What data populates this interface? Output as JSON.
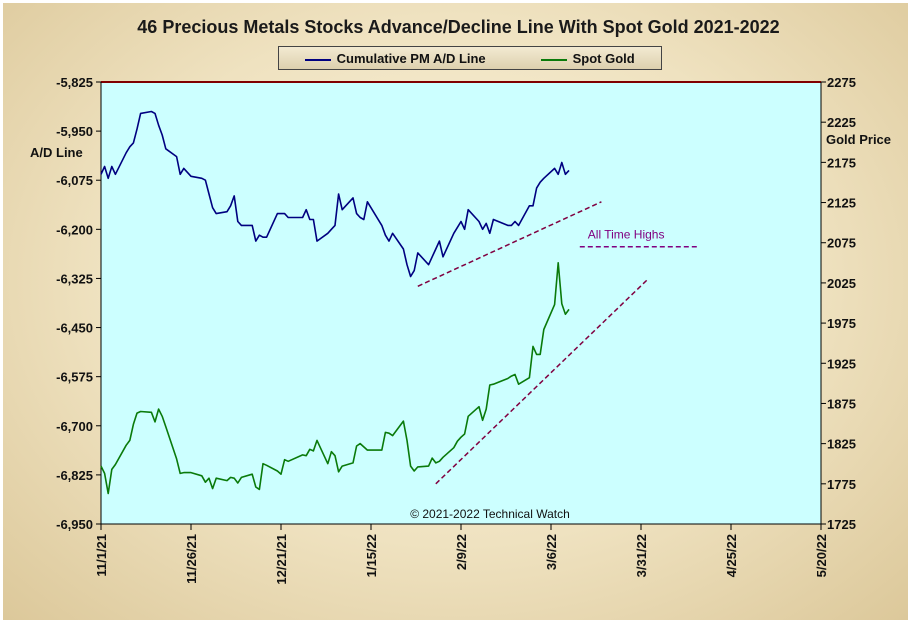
{
  "title": "46 Precious Metals Stocks Advance/Decline Line With Spot Gold 2021-2022",
  "colors": {
    "plot_bg": "#ccffff",
    "ad_line": "#000080",
    "gold_line": "#0a7a0a",
    "trend_line": "#800040",
    "ath_line": "#800080",
    "top_border": "#800000"
  },
  "legend": [
    {
      "label": "Cumulative PM A/D Line",
      "color": "#000080"
    },
    {
      "label": "Spot Gold",
      "color": "#0a7a0a"
    }
  ],
  "chart_data": {
    "type": "line",
    "title": "46 Precious Metals Stocks Advance/Decline Line With Spot Gold 2021-2022",
    "y_left_label": "A/D Line",
    "y_right_label": "Gold Price",
    "y_left_range": [
      -6950,
      -5825
    ],
    "y_right_range": [
      1725,
      2275
    ],
    "y_left_ticks": [
      "-5,825",
      "-5,950",
      "-6,075",
      "-6,200",
      "-6,325",
      "-6,450",
      "-6,575",
      "-6,700",
      "-6,825",
      "-6,950"
    ],
    "y_right_ticks": [
      "2275",
      "2225",
      "2175",
      "2125",
      "2075",
      "2025",
      "1975",
      "1925",
      "1875",
      "1825",
      "1775",
      "1725"
    ],
    "x_ticks": [
      "11/1/21",
      "11/26/21",
      "12/21/21",
      "1/15/22",
      "2/9/22",
      "3/6/22",
      "3/31/22",
      "4/25/22",
      "5/20/22"
    ],
    "x_range": [
      "2021-11-01",
      "2022-05-20"
    ],
    "grid": false,
    "legend_position": "top-center",
    "annotations": [
      "All Time Highs",
      "© 2021-2022  Technical Watch"
    ],
    "series": [
      {
        "name": "Cumulative PM A/D Line",
        "axis": "left",
        "dates": [
          "2021-11-01",
          "2021-11-02",
          "2021-11-03",
          "2021-11-04",
          "2021-11-05",
          "2021-11-08",
          "2021-11-09",
          "2021-11-10",
          "2021-11-11",
          "2021-11-12",
          "2021-11-15",
          "2021-11-16",
          "2021-11-17",
          "2021-11-18",
          "2021-11-19",
          "2021-11-22",
          "2021-11-23",
          "2021-11-24",
          "2021-11-26",
          "2021-11-29",
          "2021-11-30",
          "2021-12-01",
          "2021-12-02",
          "2021-12-03",
          "2021-12-06",
          "2021-12-07",
          "2021-12-08",
          "2021-12-09",
          "2021-12-10",
          "2021-12-13",
          "2021-12-14",
          "2021-12-15",
          "2021-12-16",
          "2021-12-17",
          "2021-12-20",
          "2021-12-21",
          "2021-12-22",
          "2021-12-23",
          "2021-12-27",
          "2021-12-28",
          "2021-12-29",
          "2021-12-30",
          "2021-12-31",
          "2022-01-03",
          "2022-01-04",
          "2022-01-05",
          "2022-01-06",
          "2022-01-07",
          "2022-01-10",
          "2022-01-11",
          "2022-01-12",
          "2022-01-13",
          "2022-01-14",
          "2022-01-18",
          "2022-01-19",
          "2022-01-20",
          "2022-01-21",
          "2022-01-24",
          "2022-01-25",
          "2022-01-26",
          "2022-01-27",
          "2022-01-28",
          "2022-01-31",
          "2022-02-01",
          "2022-02-02",
          "2022-02-03",
          "2022-02-04",
          "2022-02-07",
          "2022-02-08",
          "2022-02-09",
          "2022-02-10",
          "2022-02-11",
          "2022-02-14",
          "2022-02-15",
          "2022-02-16",
          "2022-02-17",
          "2022-02-18",
          "2022-02-22",
          "2022-02-23",
          "2022-02-24",
          "2022-02-25",
          "2022-02-28",
          "2022-03-01",
          "2022-03-02",
          "2022-03-03",
          "2022-03-04",
          "2022-03-07",
          "2022-03-08",
          "2022-03-09",
          "2022-03-10",
          "2022-03-11"
        ],
        "values": [
          -6060,
          -6040,
          -6070,
          -6040,
          -6060,
          -6005,
          -5990,
          -5980,
          -5945,
          -5905,
          -5900,
          -5905,
          -5935,
          -5960,
          -5995,
          -6015,
          -6060,
          -6045,
          -6065,
          -6070,
          -6075,
          -6110,
          -6145,
          -6160,
          -6155,
          -6140,
          -6115,
          -6180,
          -6190,
          -6190,
          -6230,
          -6215,
          -6220,
          -6220,
          -6160,
          -6160,
          -6160,
          -6170,
          -6170,
          -6150,
          -6175,
          -6175,
          -6230,
          -6210,
          -6200,
          -6190,
          -6110,
          -6150,
          -6120,
          -6160,
          -6170,
          -6175,
          -6130,
          -6190,
          -6215,
          -6230,
          -6210,
          -6250,
          -6290,
          -6320,
          -6305,
          -6260,
          -6290,
          -6270,
          -6250,
          -6230,
          -6270,
          -6210,
          -6195,
          -6180,
          -6200,
          -6150,
          -6180,
          -6200,
          -6185,
          -6210,
          -6175,
          -6190,
          -6190,
          -6180,
          -6190,
          -6140,
          -6140,
          -6095,
          -6080,
          -6070,
          -6045,
          -6060,
          -6030,
          -6060,
          -6050
        ]
      },
      {
        "name": "Spot Gold",
        "axis": "right",
        "dates": [
          "2021-11-01",
          "2021-11-02",
          "2021-11-03",
          "2021-11-04",
          "2021-11-05",
          "2021-11-08",
          "2021-11-09",
          "2021-11-10",
          "2021-11-11",
          "2021-11-12",
          "2021-11-15",
          "2021-11-16",
          "2021-11-17",
          "2021-11-18",
          "2021-11-19",
          "2021-11-22",
          "2021-11-23",
          "2021-11-24",
          "2021-11-26",
          "2021-11-29",
          "2021-11-30",
          "2021-12-01",
          "2021-12-02",
          "2021-12-03",
          "2021-12-06",
          "2021-12-07",
          "2021-12-08",
          "2021-12-09",
          "2021-12-10",
          "2021-12-13",
          "2021-12-14",
          "2021-12-15",
          "2021-12-16",
          "2021-12-17",
          "2021-12-20",
          "2021-12-21",
          "2021-12-22",
          "2021-12-23",
          "2021-12-27",
          "2021-12-28",
          "2021-12-29",
          "2021-12-30",
          "2021-12-31",
          "2022-01-03",
          "2022-01-04",
          "2022-01-05",
          "2022-01-06",
          "2022-01-07",
          "2022-01-10",
          "2022-01-11",
          "2022-01-12",
          "2022-01-13",
          "2022-01-14",
          "2022-01-18",
          "2022-01-19",
          "2022-01-20",
          "2022-01-21",
          "2022-01-24",
          "2022-01-25",
          "2022-01-26",
          "2022-01-27",
          "2022-01-28",
          "2022-01-31",
          "2022-02-01",
          "2022-02-02",
          "2022-02-03",
          "2022-02-04",
          "2022-02-07",
          "2022-02-08",
          "2022-02-09",
          "2022-02-10",
          "2022-02-11",
          "2022-02-14",
          "2022-02-15",
          "2022-02-16",
          "2022-02-17",
          "2022-02-18",
          "2022-02-22",
          "2022-02-23",
          "2022-02-24",
          "2022-02-25",
          "2022-02-28",
          "2022-03-01",
          "2022-03-02",
          "2022-03-03",
          "2022-03-04",
          "2022-03-07",
          "2022-03-08",
          "2022-03-09",
          "2022-03-10",
          "2022-03-11"
        ],
        "values": [
          1797,
          1788,
          1763,
          1793,
          1799,
          1823,
          1829,
          1849,
          1863,
          1865,
          1864,
          1852,
          1868,
          1859,
          1846,
          1806,
          1788,
          1789,
          1789,
          1785,
          1777,
          1782,
          1769,
          1782,
          1779,
          1783,
          1782,
          1776,
          1783,
          1787,
          1771,
          1768,
          1800,
          1798,
          1791,
          1787,
          1805,
          1803,
          1811,
          1810,
          1818,
          1816,
          1829,
          1800,
          1815,
          1810,
          1790,
          1797,
          1801,
          1822,
          1825,
          1821,
          1817,
          1817,
          1839,
          1838,
          1835,
          1853,
          1829,
          1797,
          1791,
          1796,
          1797,
          1807,
          1801,
          1803,
          1808,
          1820,
          1828,
          1833,
          1837,
          1859,
          1871,
          1854,
          1868,
          1898,
          1899,
          1906,
          1909,
          1911,
          1899,
          1907,
          1946,
          1936,
          1936,
          1967,
          1998,
          2050,
          1999,
          1986,
          1992
        ]
      }
    ]
  }
}
